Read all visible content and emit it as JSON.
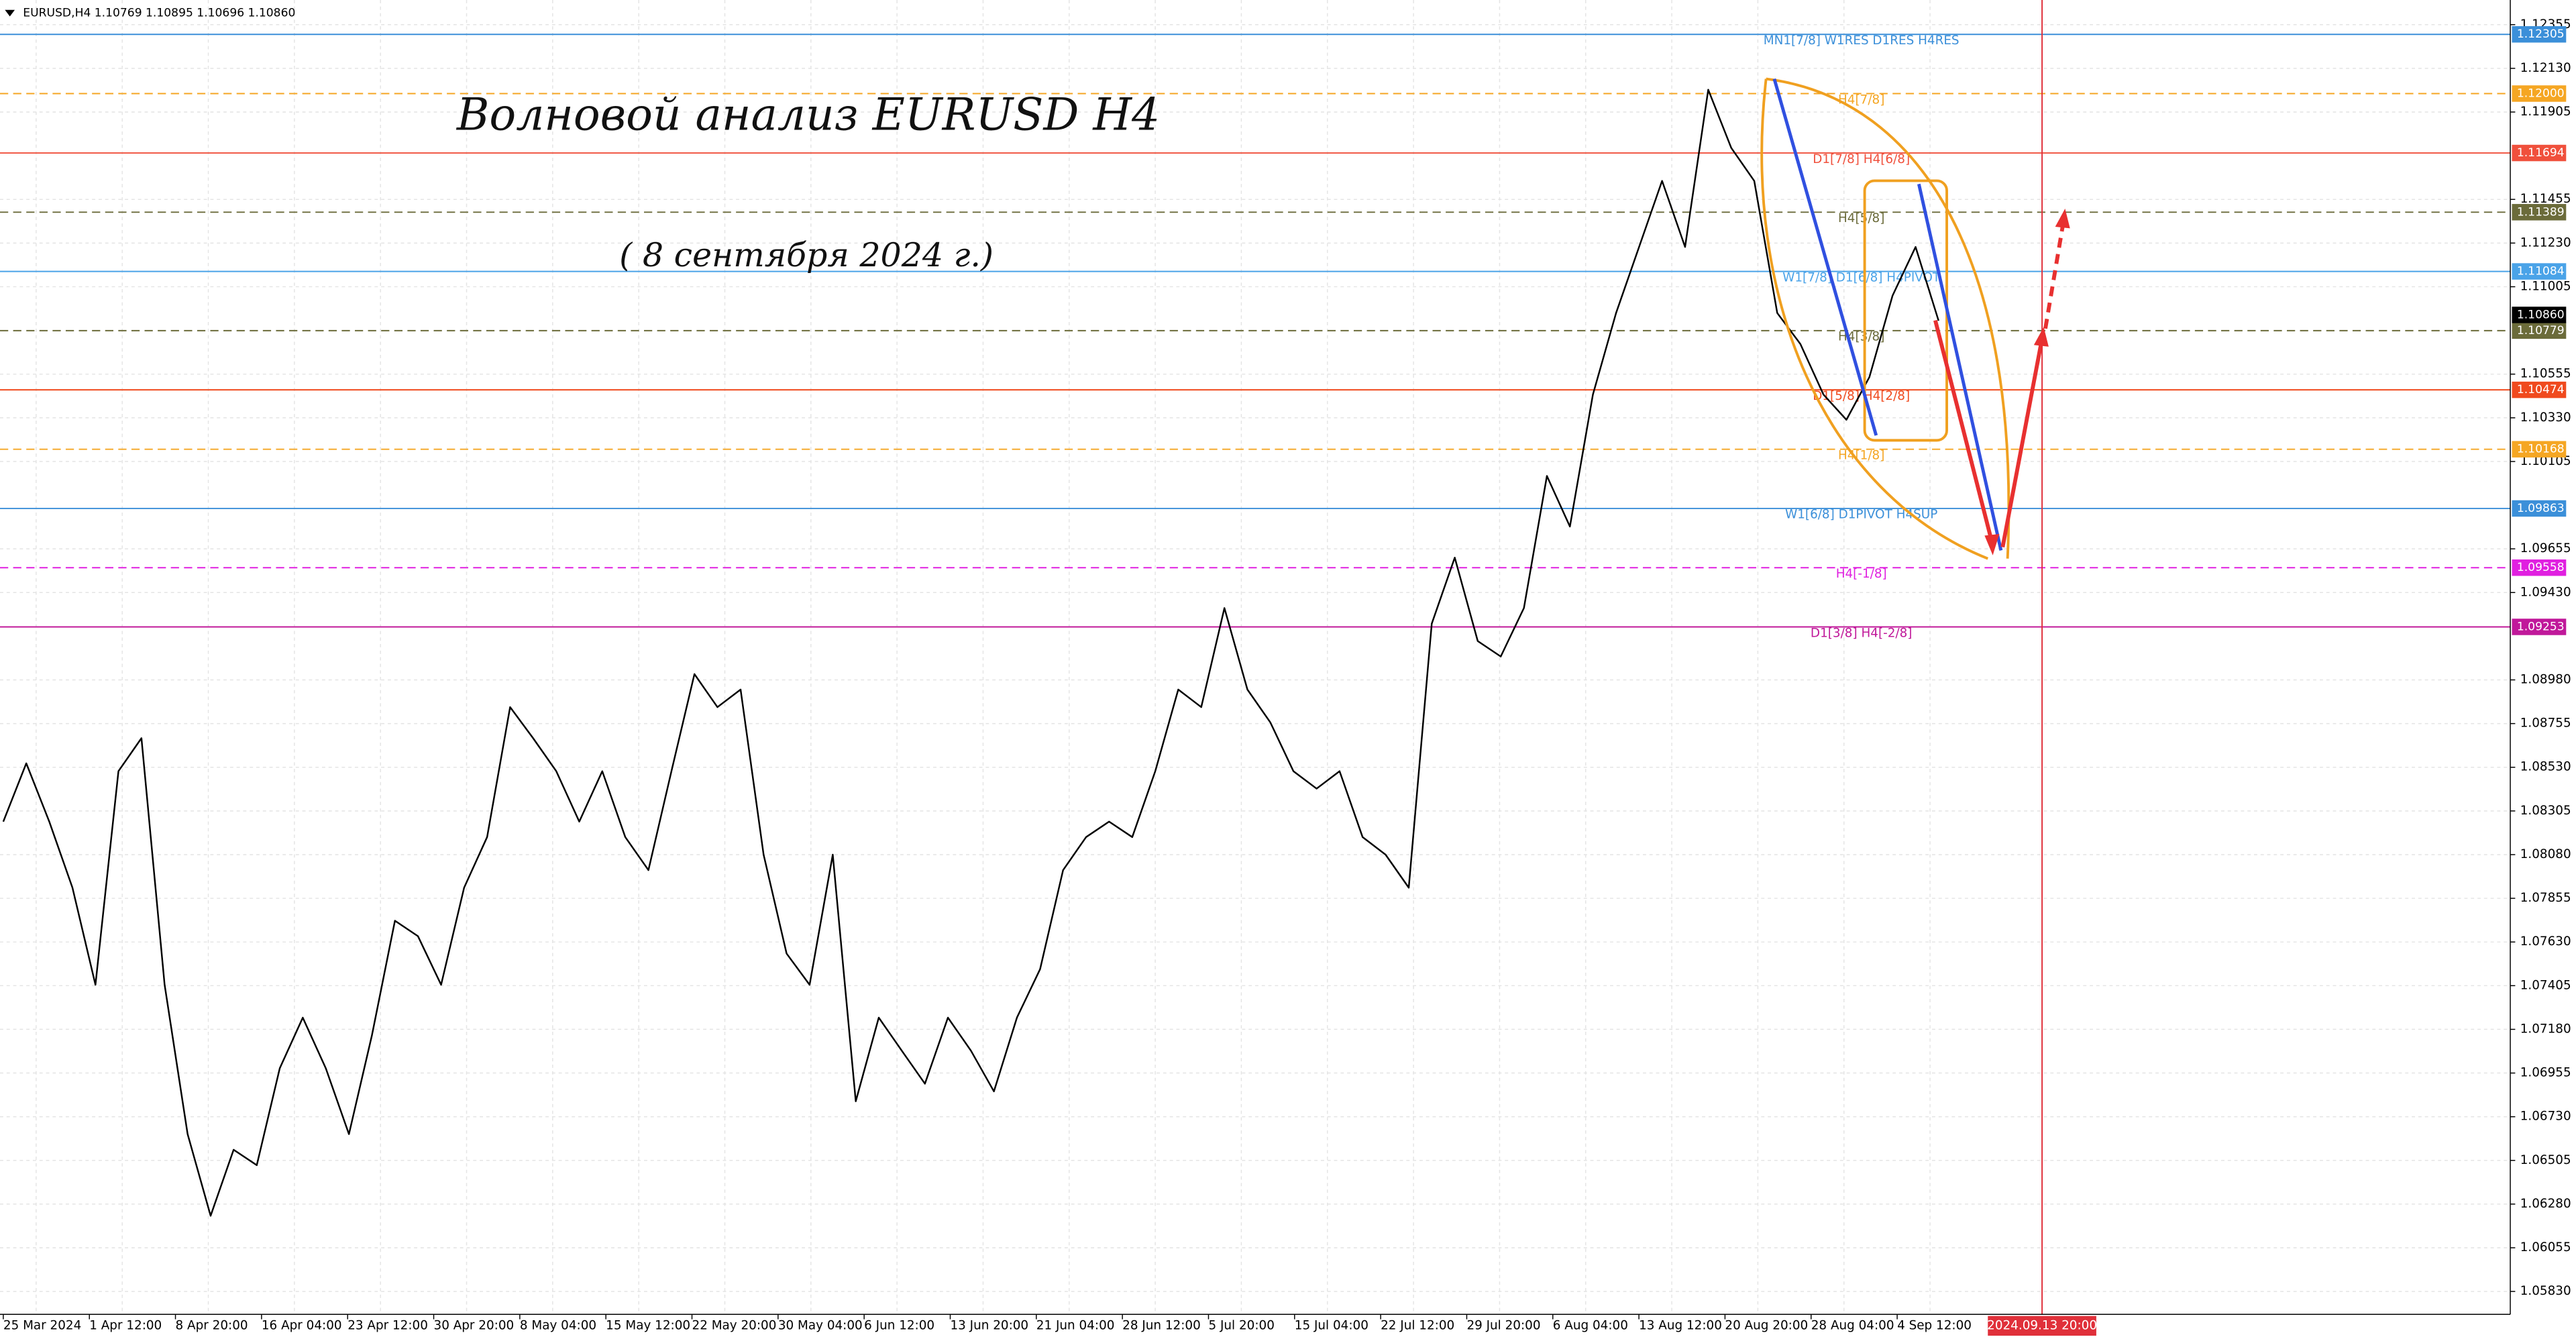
{
  "chart_data": {
    "type": "line",
    "header": "EURUSD,H4  1.10769 1.10895 1.10696 1.10860",
    "title": "Волновой анализ EURUSD H4",
    "subtitle": "( 8 сентября 2024 г.)",
    "color": "#000000",
    "values": [
      1.0825,
      1.0855,
      1.0825,
      1.0791,
      1.0741,
      1.0851,
      1.0868,
      1.0741,
      1.0664,
      1.0622,
      1.0656,
      1.0648,
      1.0698,
      1.0724,
      1.0698,
      1.0664,
      1.0715,
      1.0774,
      1.0766,
      1.0741,
      1.0791,
      1.0817,
      1.0884,
      1.0868,
      1.0851,
      1.0825,
      1.0851,
      1.0817,
      1.08,
      1.0851,
      1.0901,
      1.0884,
      1.0893,
      1.0808,
      1.0757,
      1.0741,
      1.0808,
      1.0681,
      1.0724,
      1.0707,
      1.069,
      1.0724,
      1.0707,
      1.0686,
      1.0724,
      1.0749,
      1.08,
      1.0817,
      1.0825,
      1.0817,
      1.0851,
      1.0893,
      1.0884,
      1.0935,
      1.0893,
      1.0876,
      1.0851,
      1.0842,
      1.0851,
      1.0817,
      1.0808,
      1.0791,
      1.0927,
      1.0961,
      1.0918,
      1.091,
      1.0935,
      1.1003,
      1.0977,
      1.1045,
      1.1087,
      1.1121,
      1.1155,
      1.1121,
      1.1202,
      1.1172,
      1.1155,
      1.1087,
      1.1071,
      1.1045,
      1.1032,
      1.1054,
      1.1096,
      1.1121,
      1.1083
    ],
    "ylim": [
      1.05712,
      1.12482
    ],
    "yticks": [
      1.12355,
      {
        "value": 1.1213,
        "label": "1.12130"
      },
      1.11905,
      1.11455,
      {
        "value": 1.1123,
        "label": "1.11230"
      },
      1.11005,
      1.10555,
      {
        "value": 1.1033,
        "label": "1.10330"
      },
      1.10105,
      1.09655,
      {
        "value": 1.0943,
        "label": "1.09430"
      },
      {
        "value": 1.0898,
        "label": "1.08980"
      },
      1.08755,
      {
        "value": 1.0853,
        "label": "1.08530"
      },
      1.08305,
      {
        "value": 1.0808,
        "label": "1.08080"
      },
      1.07855,
      {
        "value": 1.0763,
        "label": "1.07630"
      },
      1.07405,
      {
        "value": 1.0718,
        "label": "1.07180"
      },
      1.06955,
      {
        "value": 1.0673,
        "label": "1.06730"
      },
      1.06505,
      {
        "value": 1.0628,
        "label": "1.06280"
      },
      1.06055,
      {
        "value": 1.0583,
        "label": "1.05830"
      }
    ],
    "x_labels": [
      "25 Mar 2024",
      "1 Apr 12:00",
      "8 Apr 20:00",
      "16 Apr 04:00",
      "23 Apr 12:00",
      "30 Apr 20:00",
      "8 May 04:00",
      "15 May 12:00",
      "22 May 20:00",
      "30 May 04:00",
      "6 Jun 12:00",
      "13 Jun 20:00",
      "21 Jun 04:00",
      "28 Jun 12:00",
      "5 Jul 20:00",
      "15 Jul 04:00",
      "22 Jul 12:00",
      "29 Jul 20:00",
      "6 Aug 04:00",
      "13 Aug 12:00",
      "20 Aug 20:00",
      "28 Aug 04:00",
      "4 Sep 12:00"
    ],
    "cursor_time_label": "2024.09.13 20:00",
    "grid": true,
    "levels": [
      {
        "value": 1.12305,
        "tag": "1.12305",
        "label": "MN1[7/8] W1RES D1RES H4RES",
        "color": "#3b8fd9",
        "dashed": false
      },
      {
        "value": 1.12,
        "tag": "1.12000",
        "label": "H4[7/8]",
        "color": "#f5a623",
        "dashed": true
      },
      {
        "value": 1.11694,
        "tag": "1.11694",
        "label": "D1[7/8] H4[6/8]",
        "color": "#f0503c",
        "dashed": false
      },
      {
        "value": 1.11389,
        "tag": "1.11389",
        "label": "H4[5/8]",
        "color": "#6b6b3a",
        "dashed": true
      },
      {
        "value": 1.11084,
        "tag": "1.11084",
        "label": "W1[7/8] D1[6/8] H4PIVOT",
        "color": "#4aa3e8",
        "dashed": false
      },
      {
        "value": 1.10779,
        "tag": "1.10779",
        "label": "H4[3/8]",
        "color": "#6b6b3a",
        "dashed": true
      },
      {
        "value": 1.10474,
        "tag": "1.10474",
        "label": "D1[5/8] H4[2/8]",
        "color": "#f04a1e",
        "dashed": false
      },
      {
        "value": 1.10168,
        "tag": "1.10168",
        "label": "H4[1/8]",
        "color": "#f5a623",
        "dashed": true
      },
      {
        "value": 1.09863,
        "tag": "1.09863",
        "label": "W1[6/8] D1PIVOT H4SUP",
        "color": "#3b8fd9",
        "dashed": false
      },
      {
        "value": 1.09558,
        "tag": "1.09558",
        "label": "H4[-1/8]",
        "color": "#e020e0",
        "dashed": true
      },
      {
        "value": 1.09253,
        "tag": "1.09253",
        "label": "D1[3/8] H4[-2/8]",
        "color": "#c0189a",
        "dashed": false
      }
    ],
    "current_price": {
      "value": 1.1086,
      "tag": "1.10860",
      "color": "#000000"
    }
  }
}
